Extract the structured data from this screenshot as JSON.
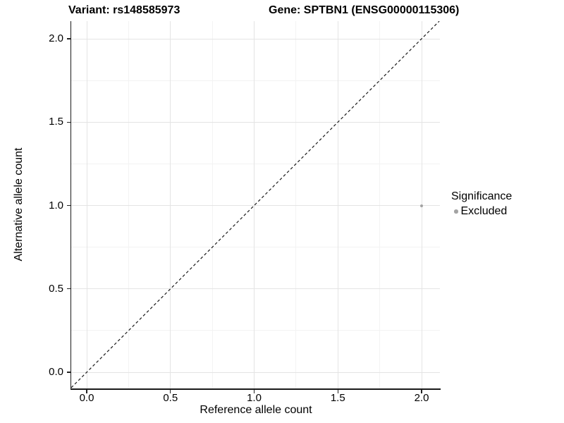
{
  "titles": {
    "variant": "Variant: rs148585973",
    "gene": "Gene: SPTBN1 (ENSG00000115306)"
  },
  "chart_data": {
    "type": "scatter",
    "title_left": "Variant: rs148585973",
    "title_right": "Gene: SPTBN1 (ENSG00000115306)",
    "xlabel": "Reference allele count",
    "ylabel": "Alternative allele count",
    "xlim": [
      -0.093,
      2.114
    ],
    "ylim": [
      -0.097,
      2.105
    ],
    "xticks": {
      "values": [
        0.0,
        0.5,
        1.0,
        1.5,
        2.0
      ],
      "labels": [
        "0.0",
        "0.5",
        "1.0",
        "1.5",
        "2.0"
      ]
    },
    "yticks": {
      "values": [
        0.0,
        0.5,
        1.0,
        1.5,
        2.0
      ],
      "labels": [
        "0.0",
        "0.5",
        "1.0",
        "1.5",
        "2.0"
      ]
    },
    "minor_xticks": [
      0.25,
      0.75,
      1.25,
      1.75
    ],
    "minor_yticks": [
      0.25,
      0.75,
      1.25,
      1.75
    ],
    "grid": true,
    "identity_line": {
      "slope": 1,
      "intercept": 0,
      "style": "dashed",
      "color": "#1a1a1a"
    },
    "series": [
      {
        "name": "Excluded",
        "color": "#a3a3a3",
        "points": [
          {
            "x": 2.0,
            "y": 1.0
          }
        ]
      }
    ],
    "legend": {
      "position": "right",
      "title": "Significance",
      "items": [
        {
          "label": "Excluded",
          "color": "#a3a3a3",
          "marker": "circle"
        }
      ]
    },
    "colors": {
      "grid_major": "#e4e4e4",
      "grid_minor": "#f3f3f3",
      "axis_line": "#1a1a1a",
      "point": "#a3a3a3"
    }
  }
}
